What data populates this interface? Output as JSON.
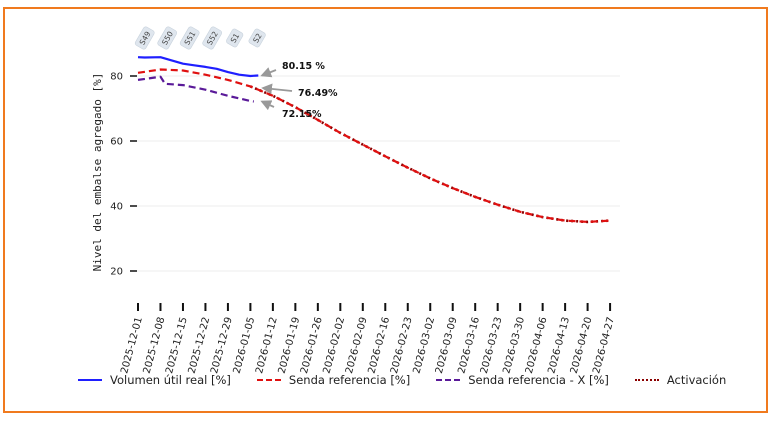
{
  "chart_data": {
    "type": "line",
    "title": "",
    "xlabel": "",
    "ylabel": "Nivel del embalse agregado [%]",
    "ylim": [
      10,
      92
    ],
    "yticks": [
      20,
      40,
      60,
      80
    ],
    "grid": true,
    "legend_position": "bottom",
    "x_ticks": [
      "2025-12-01",
      "2025-12-08",
      "2025-12-15",
      "2025-12-22",
      "2025-12-29",
      "2026-01-05",
      "2026-01-12",
      "2026-01-19",
      "2026-01-26",
      "2026-02-02",
      "2026-02-09",
      "2026-02-16",
      "2026-02-23",
      "2026-03-02",
      "2026-03-09",
      "2026-03-16",
      "2026-03-23",
      "2026-03-30",
      "2026-04-06",
      "2026-04-13",
      "2026-04-20",
      "2026-04-27"
    ],
    "week_labels": [
      {
        "label": "S49",
        "week_index": 0.3
      },
      {
        "label": "S50",
        "week_index": 1.3
      },
      {
        "label": "S51",
        "week_index": 2.3
      },
      {
        "label": "S52",
        "week_index": 3.3
      },
      {
        "label": "S1",
        "week_index": 4.3
      },
      {
        "label": "S2",
        "week_index": 5.3
      }
    ],
    "series": [
      {
        "name": "Volumen útil real [%]",
        "color": "#1f1fff",
        "style": "solid",
        "x": [
          0,
          0.3,
          1.0,
          1.5,
          2.0,
          2.5,
          3.0,
          3.5,
          4.0,
          4.5,
          5.0,
          5.35
        ],
        "values": [
          85.8,
          85.7,
          85.8,
          84.8,
          83.8,
          83.3,
          82.8,
          82.2,
          81.2,
          80.4,
          80.0,
          80.15
        ]
      },
      {
        "name": "Senda referencia [%]",
        "color": "#e01010",
        "style": "dashed",
        "x": [
          0,
          1,
          2,
          3,
          4,
          5,
          6,
          7,
          8,
          9,
          10,
          11,
          12,
          13,
          14,
          15,
          16,
          17,
          18,
          19,
          20,
          21
        ],
        "values": [
          81.0,
          82.0,
          81.7,
          80.4,
          78.8,
          76.8,
          73.9,
          70.4,
          66.5,
          62.5,
          58.9,
          55.3,
          51.8,
          48.5,
          45.5,
          42.8,
          40.4,
          38.2,
          36.6,
          35.5,
          35.1,
          35.5
        ]
      },
      {
        "name": "Senda referencia - X [%]",
        "color": "#5a1a99",
        "style": "dashed",
        "x": [
          0,
          1,
          1.2,
          2,
          3,
          4,
          5,
          5.15
        ],
        "values": [
          78.8,
          79.8,
          77.6,
          77.2,
          75.8,
          73.9,
          72.3,
          72.15
        ]
      },
      {
        "name": "Activación",
        "color": "#8b0000",
        "style": "dotted",
        "x": [
          5,
          6,
          7,
          8,
          9,
          10,
          11,
          12,
          13,
          14,
          15,
          16,
          17,
          18,
          19,
          20,
          21
        ],
        "values": [
          76.8,
          73.9,
          70.4,
          66.5,
          62.5,
          58.9,
          55.3,
          51.8,
          48.5,
          45.5,
          42.8,
          40.4,
          38.2,
          36.6,
          35.5,
          35.1,
          35.5
        ]
      }
    ],
    "annotations": [
      {
        "text": "80.15 %",
        "target_series": "Volumen útil real [%]",
        "value": 80.15
      },
      {
        "text": "76.49%",
        "target_series": "Senda referencia [%]",
        "value": 76.49
      },
      {
        "text": "72.15%",
        "target_series": "Senda referencia - X [%]",
        "value": 72.15
      }
    ]
  },
  "legend": [
    {
      "label": "Volumen útil real [%]",
      "color": "#1f1fff",
      "style": "solid"
    },
    {
      "label": "Senda referencia [%]",
      "color": "#e01010",
      "style": "dashed"
    },
    {
      "label": "Senda referencia - X [%]",
      "color": "#5a1a99",
      "style": "dashed"
    },
    {
      "label": "Activación",
      "color": "#8b0000",
      "style": "dotted"
    }
  ],
  "frame_color": "#f07a1e"
}
